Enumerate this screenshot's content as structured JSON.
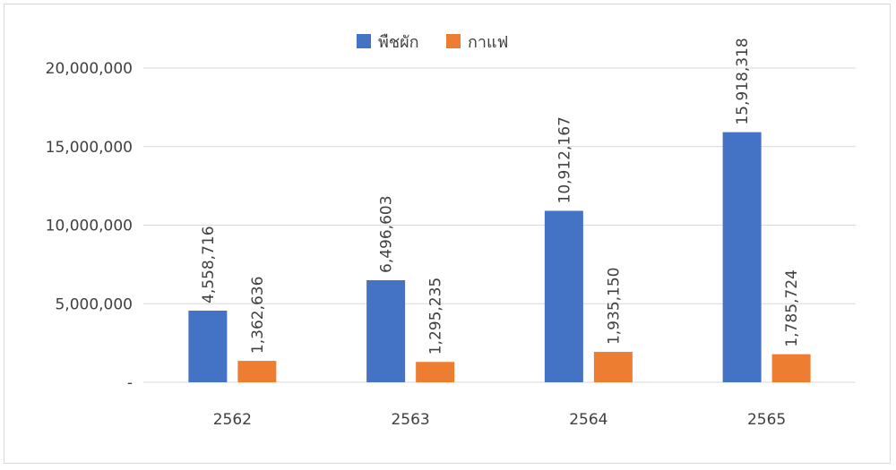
{
  "chart_data": {
    "type": "bar",
    "title": "",
    "xlabel": "",
    "ylabel": "",
    "categories": [
      "2562",
      "2563",
      "2564",
      "2565"
    ],
    "series": [
      {
        "name": "พืชผัก",
        "color": "#4472c4",
        "values": [
          4558716,
          6496603,
          10912167,
          15918318
        ],
        "labels": [
          "4,558,716",
          "6,496,603",
          "10,912,167",
          "15,918,318"
        ]
      },
      {
        "name": "กาแฟ",
        "color": "#ed7d31",
        "values": [
          1362636,
          1295235,
          1935150,
          1785724
        ],
        "labels": [
          "1,362,636",
          "1,295,235",
          "1,935,150",
          "1,785,724"
        ]
      }
    ],
    "ylim": [
      0,
      20000000
    ],
    "y_ticks": [
      {
        "value": 20000000,
        "label": "20,000,000"
      },
      {
        "value": 15000000,
        "label": "15,000,000"
      },
      {
        "value": 10000000,
        "label": "10,000,000"
      },
      {
        "value": 5000000,
        "label": "5,000,000"
      },
      {
        "value": 0,
        "label": "-"
      }
    ],
    "grid": true,
    "legend": "top-center"
  }
}
